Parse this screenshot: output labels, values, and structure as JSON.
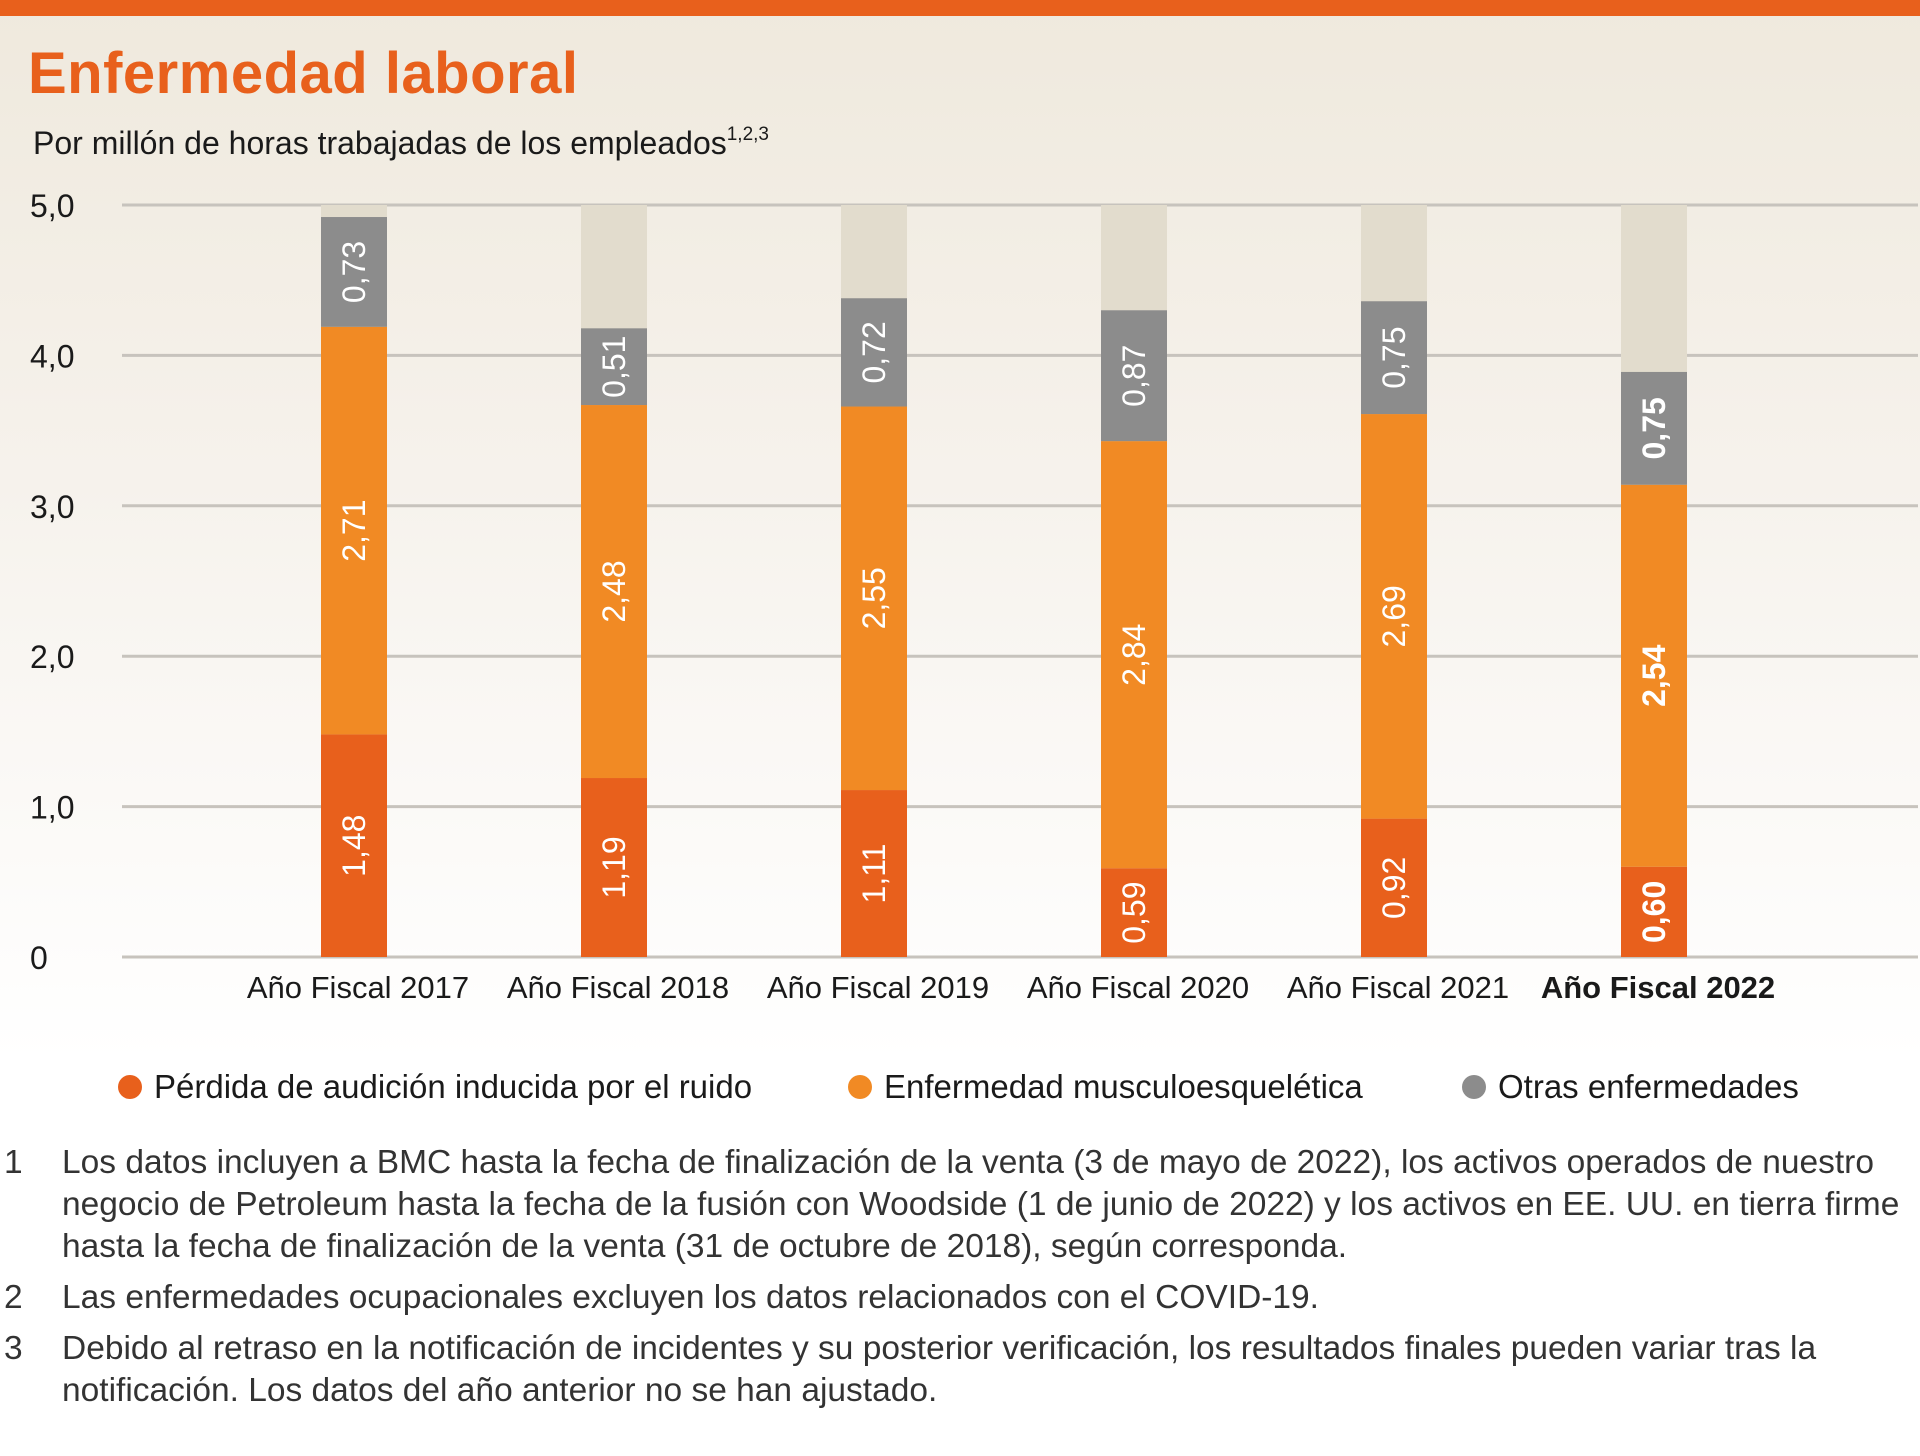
{
  "title": "Enfermedad laboral",
  "subtitle": "Por millón de horas trabajadas de los empleados",
  "subtitle_sup": "1,2,3",
  "colors": {
    "accent": "#e8601c",
    "noise": "#e8601c",
    "musculo": "#f18a24",
    "other": "#8c8c8c",
    "track": "#e2dccd",
    "grid": "#c7c3bd"
  },
  "legend": [
    {
      "label": "Pérdida de audición inducida por el ruido",
      "color": "#e8601c"
    },
    {
      "label": "Enfermedad musculoesquelética",
      "color": "#f18a24"
    },
    {
      "label": "Otras enfermedades",
      "color": "#8c8c8c"
    }
  ],
  "chart_data": {
    "type": "bar",
    "stacked": true,
    "categories": [
      "Año Fiscal 2017",
      "Año Fiscal 2018",
      "Año Fiscal 2019",
      "Año Fiscal 2020",
      "Año Fiscal 2021",
      "Año Fiscal 2022"
    ],
    "highlight_category": "Año Fiscal 2022",
    "series": [
      {
        "name": "Pérdida de audición inducida por el ruido",
        "values": [
          1.48,
          1.19,
          1.11,
          0.59,
          0.92,
          0.6
        ],
        "labels": [
          "1,48",
          "1,19",
          "1,11",
          "0,59",
          "0,92",
          "0,60"
        ]
      },
      {
        "name": "Enfermedad musculoesquelética",
        "values": [
          2.71,
          2.48,
          2.55,
          2.84,
          2.69,
          2.54
        ],
        "labels": [
          "2,71",
          "2,48",
          "2,55",
          "2,84",
          "2,69",
          "2,54"
        ]
      },
      {
        "name": "Otras enfermedades",
        "values": [
          0.73,
          0.51,
          0.72,
          0.87,
          0.75,
          0.75
        ],
        "labels": [
          "0,73",
          "0,51",
          "0,72",
          "0,87",
          "0,75",
          "0,75"
        ]
      }
    ],
    "ylim": [
      0,
      5
    ],
    "yticks": [
      0,
      1,
      2,
      3,
      4,
      5
    ],
    "ytick_labels": [
      "0",
      "1,0",
      "2,0",
      "3,0",
      "4,0",
      "5,0"
    ],
    "grid": true,
    "legend_position": "bottom"
  },
  "footnotes": [
    {
      "num": "1",
      "text": "Los datos incluyen a BMC hasta la fecha de finalización de la venta (3 de mayo de 2022), los activos operados de nuestro negocio de Petroleum hasta la fecha de la fusión con Woodside (1 de junio de 2022) y los activos en EE. UU. en tierra firme hasta la fecha de finalización de la venta (31 de octubre de 2018), según corresponda."
    },
    {
      "num": "2",
      "text": "Las enfermedades ocupacionales excluyen los datos relacionados con el COVID-19."
    },
    {
      "num": "3",
      "text": "Debido al retraso en la notificación de incidentes y su posterior verificación, los resultados finales pueden variar tras la notificación. Los datos del año anterior no se han ajustado."
    }
  ]
}
